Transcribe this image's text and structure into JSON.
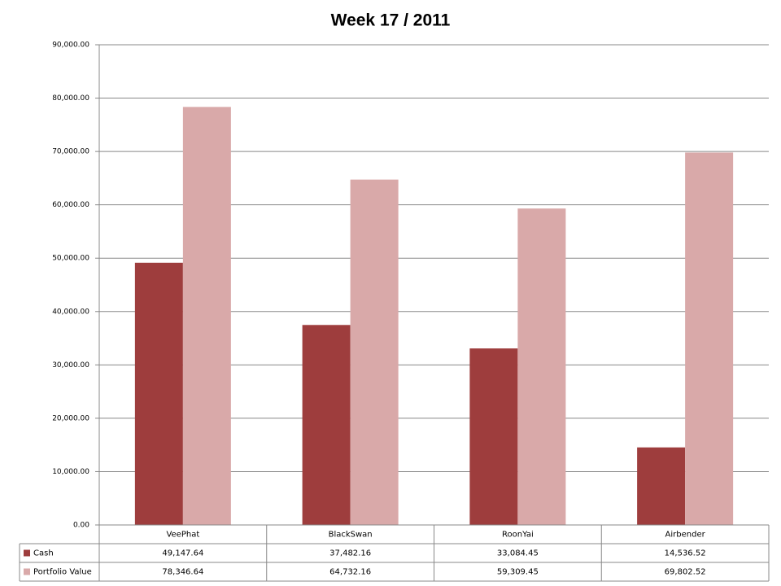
{
  "chart_data": {
    "type": "bar",
    "title": "Week 17 / 2011",
    "categories": [
      "VeePhat",
      "BlackSwan",
      "RoonYai",
      "Airbender"
    ],
    "series": [
      {
        "name": "Cash",
        "color": "#9e3d3d",
        "values": [
          49147.64,
          37482.16,
          33084.45,
          14536.52
        ],
        "value_labels": [
          "49,147.64",
          "37,482.16",
          "33,084.45",
          "14,536.52"
        ]
      },
      {
        "name": "Portfolio Value",
        "color": "#d9a9a9",
        "values": [
          78346.64,
          64732.16,
          59309.45,
          69802.52
        ],
        "value_labels": [
          "78,346.64",
          "64,732.16",
          "59,309.45",
          "69,802.52"
        ]
      }
    ],
    "ylim": [
      0,
      90000
    ],
    "yticks": [
      {
        "value": 0,
        "label": "0.00"
      },
      {
        "value": 10000,
        "label": "10,000.00"
      },
      {
        "value": 20000,
        "label": "20,000.00"
      },
      {
        "value": 30000,
        "label": "30,000.00"
      },
      {
        "value": 40000,
        "label": "40,000.00"
      },
      {
        "value": 50000,
        "label": "50,000.00"
      },
      {
        "value": 60000,
        "label": "60,000.00"
      },
      {
        "value": 70000,
        "label": "70,000.00"
      },
      {
        "value": 80000,
        "label": "80,000.00"
      },
      {
        "value": 90000,
        "label": "90,000.00"
      }
    ],
    "grid": true
  }
}
